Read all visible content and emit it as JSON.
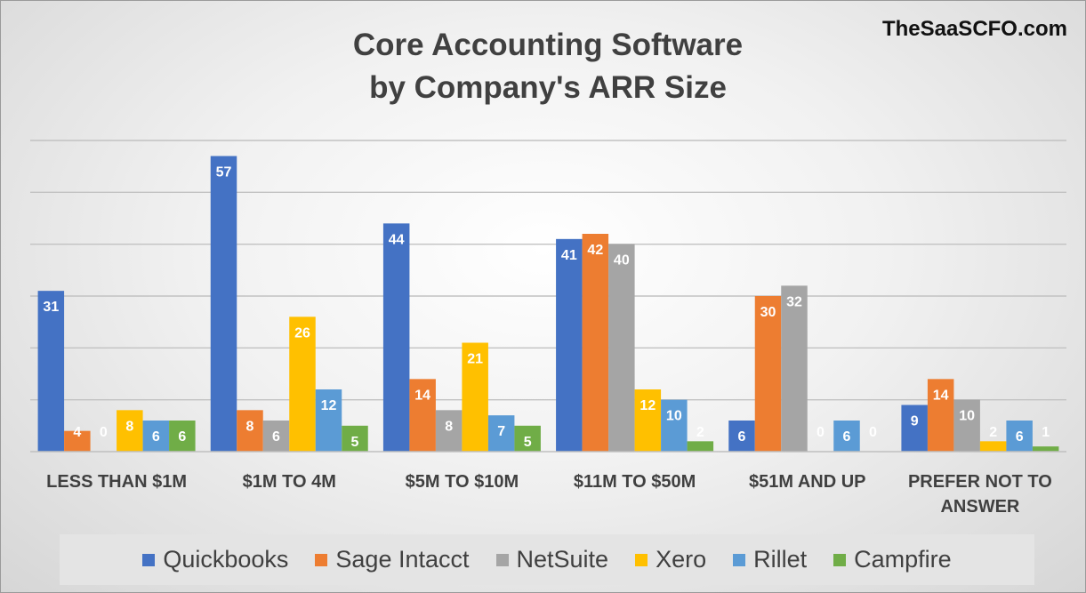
{
  "brand": "TheSaaSCFO.com",
  "chart_data": {
    "type": "bar",
    "title": "Core Accounting Software by Company's ARR Size",
    "title_lines": [
      "Core Accounting Software",
      "by Company's ARR Size"
    ],
    "categories": [
      [
        "LESS THAN $1M"
      ],
      [
        "$1M TO 4M"
      ],
      [
        "$5M TO $10M"
      ],
      [
        "$11M TO $50M"
      ],
      [
        "$51M AND UP"
      ],
      [
        "PREFER NOT TO",
        "ANSWER"
      ]
    ],
    "series": [
      {
        "name": "Quickbooks",
        "color": "#4472C4",
        "values": [
          31,
          57,
          44,
          41,
          6,
          9
        ]
      },
      {
        "name": "Sage Intacct",
        "color": "#ED7D31",
        "values": [
          4,
          8,
          14,
          42,
          30,
          14
        ]
      },
      {
        "name": "NetSuite",
        "color": "#A5A5A5",
        "values": [
          0,
          6,
          8,
          40,
          32,
          10
        ]
      },
      {
        "name": "Xero",
        "color": "#FFC000",
        "values": [
          8,
          26,
          21,
          12,
          0,
          2
        ]
      },
      {
        "name": "Rillet",
        "color": "#5B9BD5",
        "values": [
          6,
          12,
          7,
          10,
          6,
          6
        ]
      },
      {
        "name": "Campfire",
        "color": "#70AD47",
        "values": [
          6,
          5,
          5,
          2,
          0,
          1
        ]
      }
    ],
    "ylim": [
      0,
      60
    ],
    "gridline_step": 10,
    "grid": true,
    "data_labels": true,
    "legend_position": "bottom"
  }
}
